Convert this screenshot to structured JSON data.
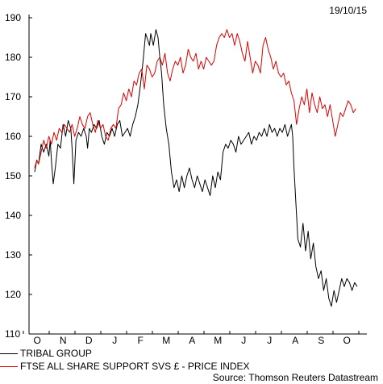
{
  "date_label": "19/10/15",
  "source": "Source: Thomson Reuters Datastream",
  "chart_data": {
    "type": "line",
    "ylim": [
      110,
      190
    ],
    "yticks": [
      110,
      120,
      130,
      140,
      150,
      160,
      170,
      180,
      190
    ],
    "x_months": [
      "O",
      "N",
      "D",
      "J",
      "F",
      "M",
      "A",
      "M",
      "J",
      "J",
      "A",
      "S",
      "O"
    ],
    "grid": false,
    "legend_position": "bottom-left",
    "series": [
      {
        "name": "TRIBAL GROUP",
        "color": "#000000",
        "x": [
          0,
          0.08,
          0.15,
          0.25,
          0.35,
          0.45,
          0.55,
          0.6,
          0.66,
          0.72,
          0.8,
          0.9,
          1.0,
          1.1,
          1.2,
          1.3,
          1.4,
          1.45,
          1.52,
          1.6,
          1.7,
          1.8,
          1.9,
          2.0,
          2.05,
          2.12,
          2.2,
          2.3,
          2.4,
          2.5,
          2.6,
          2.7,
          2.8,
          2.9,
          3.0,
          3.1,
          3.2,
          3.3,
          3.4,
          3.5,
          3.6,
          3.7,
          3.8,
          3.9,
          4.0,
          4.1,
          4.2,
          4.3,
          4.4,
          4.45,
          4.5,
          4.6,
          4.7,
          4.78,
          4.85,
          4.92,
          5.0,
          5.1,
          5.2,
          5.3,
          5.4,
          5.5,
          5.6,
          5.7,
          5.8,
          5.9,
          6.0,
          6.1,
          6.2,
          6.3,
          6.4,
          6.5,
          6.6,
          6.7,
          6.8,
          6.9,
          7.0,
          7.1,
          7.2,
          7.3,
          7.4,
          7.5,
          7.6,
          7.7,
          7.8,
          7.9,
          8.0,
          8.1,
          8.2,
          8.3,
          8.4,
          8.5,
          8.6,
          8.7,
          8.8,
          8.9,
          9.0,
          9.1,
          9.2,
          9.3,
          9.4,
          9.5,
          9.6,
          9.7,
          9.8,
          9.9,
          9.95,
          10.0,
          10.05,
          10.1,
          10.2,
          10.3,
          10.4,
          10.5,
          10.6,
          10.7,
          10.8,
          10.9,
          11.0,
          11.1,
          11.2,
          11.3,
          11.4,
          11.5,
          11.6,
          11.7,
          11.8,
          11.9,
          12.0,
          12.1,
          12.2,
          12.3,
          12.4,
          12.5
        ],
        "y": [
          151,
          154,
          153,
          158,
          156,
          158,
          155,
          159,
          153,
          148,
          152,
          158,
          157,
          163,
          160,
          164,
          162,
          157,
          148,
          159,
          161,
          160,
          162,
          160,
          157,
          162,
          161,
          163,
          162,
          164,
          160,
          158,
          161,
          160,
          162,
          160,
          163,
          164,
          160,
          161,
          162,
          160,
          163,
          165,
          168,
          173,
          179,
          186,
          184,
          183,
          186,
          183,
          187,
          185,
          180,
          176,
          168,
          162,
          158,
          151,
          147,
          149,
          146,
          150,
          147,
          150,
          152,
          149,
          147,
          150,
          148,
          146,
          149,
          147,
          145,
          150,
          147,
          151,
          149,
          156,
          158,
          157,
          159,
          158,
          156,
          160,
          158,
          159,
          160,
          161,
          158,
          160,
          159,
          161,
          160,
          162,
          160,
          163,
          161,
          162,
          160,
          162,
          161,
          163,
          160,
          162,
          163,
          160,
          152,
          146,
          134,
          132,
          138,
          131,
          136,
          129,
          133,
          127,
          124,
          126,
          121,
          124,
          119,
          117,
          121,
          118,
          121,
          124,
          122,
          124,
          123,
          121,
          123,
          122
        ]
      },
      {
        "name": "FTSE ALL SHARE SUPPORT SVS £ - PRICE INDEX",
        "color": "#dd0000",
        "x": [
          0,
          0.08,
          0.15,
          0.25,
          0.35,
          0.45,
          0.55,
          0.65,
          0.75,
          0.85,
          0.95,
          1.05,
          1.15,
          1.25,
          1.35,
          1.45,
          1.55,
          1.65,
          1.75,
          1.85,
          1.95,
          2.05,
          2.15,
          2.25,
          2.35,
          2.45,
          2.55,
          2.65,
          2.75,
          2.85,
          2.95,
          3.05,
          3.15,
          3.25,
          3.35,
          3.45,
          3.55,
          3.65,
          3.75,
          3.85,
          3.95,
          4.05,
          4.15,
          4.25,
          4.35,
          4.45,
          4.55,
          4.65,
          4.75,
          4.85,
          4.95,
          5.05,
          5.15,
          5.25,
          5.35,
          5.45,
          5.55,
          5.65,
          5.75,
          5.85,
          5.95,
          6.05,
          6.15,
          6.25,
          6.35,
          6.45,
          6.55,
          6.65,
          6.75,
          6.85,
          6.95,
          7.05,
          7.15,
          7.25,
          7.35,
          7.45,
          7.55,
          7.65,
          7.75,
          7.85,
          7.95,
          8.05,
          8.15,
          8.25,
          8.35,
          8.45,
          8.55,
          8.65,
          8.75,
          8.85,
          8.95,
          9.05,
          9.15,
          9.25,
          9.35,
          9.45,
          9.55,
          9.65,
          9.75,
          9.85,
          9.95,
          10.05,
          10.15,
          10.25,
          10.35,
          10.45,
          10.55,
          10.65,
          10.75,
          10.85,
          10.95,
          11.05,
          11.15,
          11.25,
          11.35,
          11.45,
          11.55,
          11.65,
          11.75,
          11.85,
          11.95,
          12.05,
          12.15,
          12.25,
          12.35,
          12.45
        ],
        "y": [
          152,
          154,
          153,
          156,
          159,
          157,
          160,
          158,
          161,
          159,
          162,
          161,
          163,
          162,
          161,
          163,
          160,
          162,
          165,
          163,
          162,
          165,
          166,
          163,
          161,
          164,
          162,
          163,
          160,
          159,
          162,
          163,
          162,
          167,
          168,
          171,
          169,
          172,
          170,
          174,
          173,
          176,
          177,
          172,
          178,
          177,
          175,
          176,
          179,
          180,
          178,
          181,
          176,
          174,
          177,
          179,
          178,
          180,
          176,
          178,
          182,
          180,
          179,
          181,
          177,
          179,
          177,
          180,
          179,
          178,
          179,
          183,
          185,
          186,
          185,
          187,
          185,
          186,
          183,
          186,
          184,
          181,
          179,
          184,
          180,
          176,
          179,
          178,
          176,
          183,
          185,
          182,
          180,
          177,
          179,
          176,
          175,
          176,
          173,
          174,
          171,
          169,
          163,
          167,
          170,
          168,
          172,
          166,
          171,
          168,
          166,
          170,
          167,
          168,
          165,
          168,
          164,
          160,
          163,
          166,
          165,
          167,
          169,
          168,
          166,
          167
        ]
      }
    ]
  }
}
